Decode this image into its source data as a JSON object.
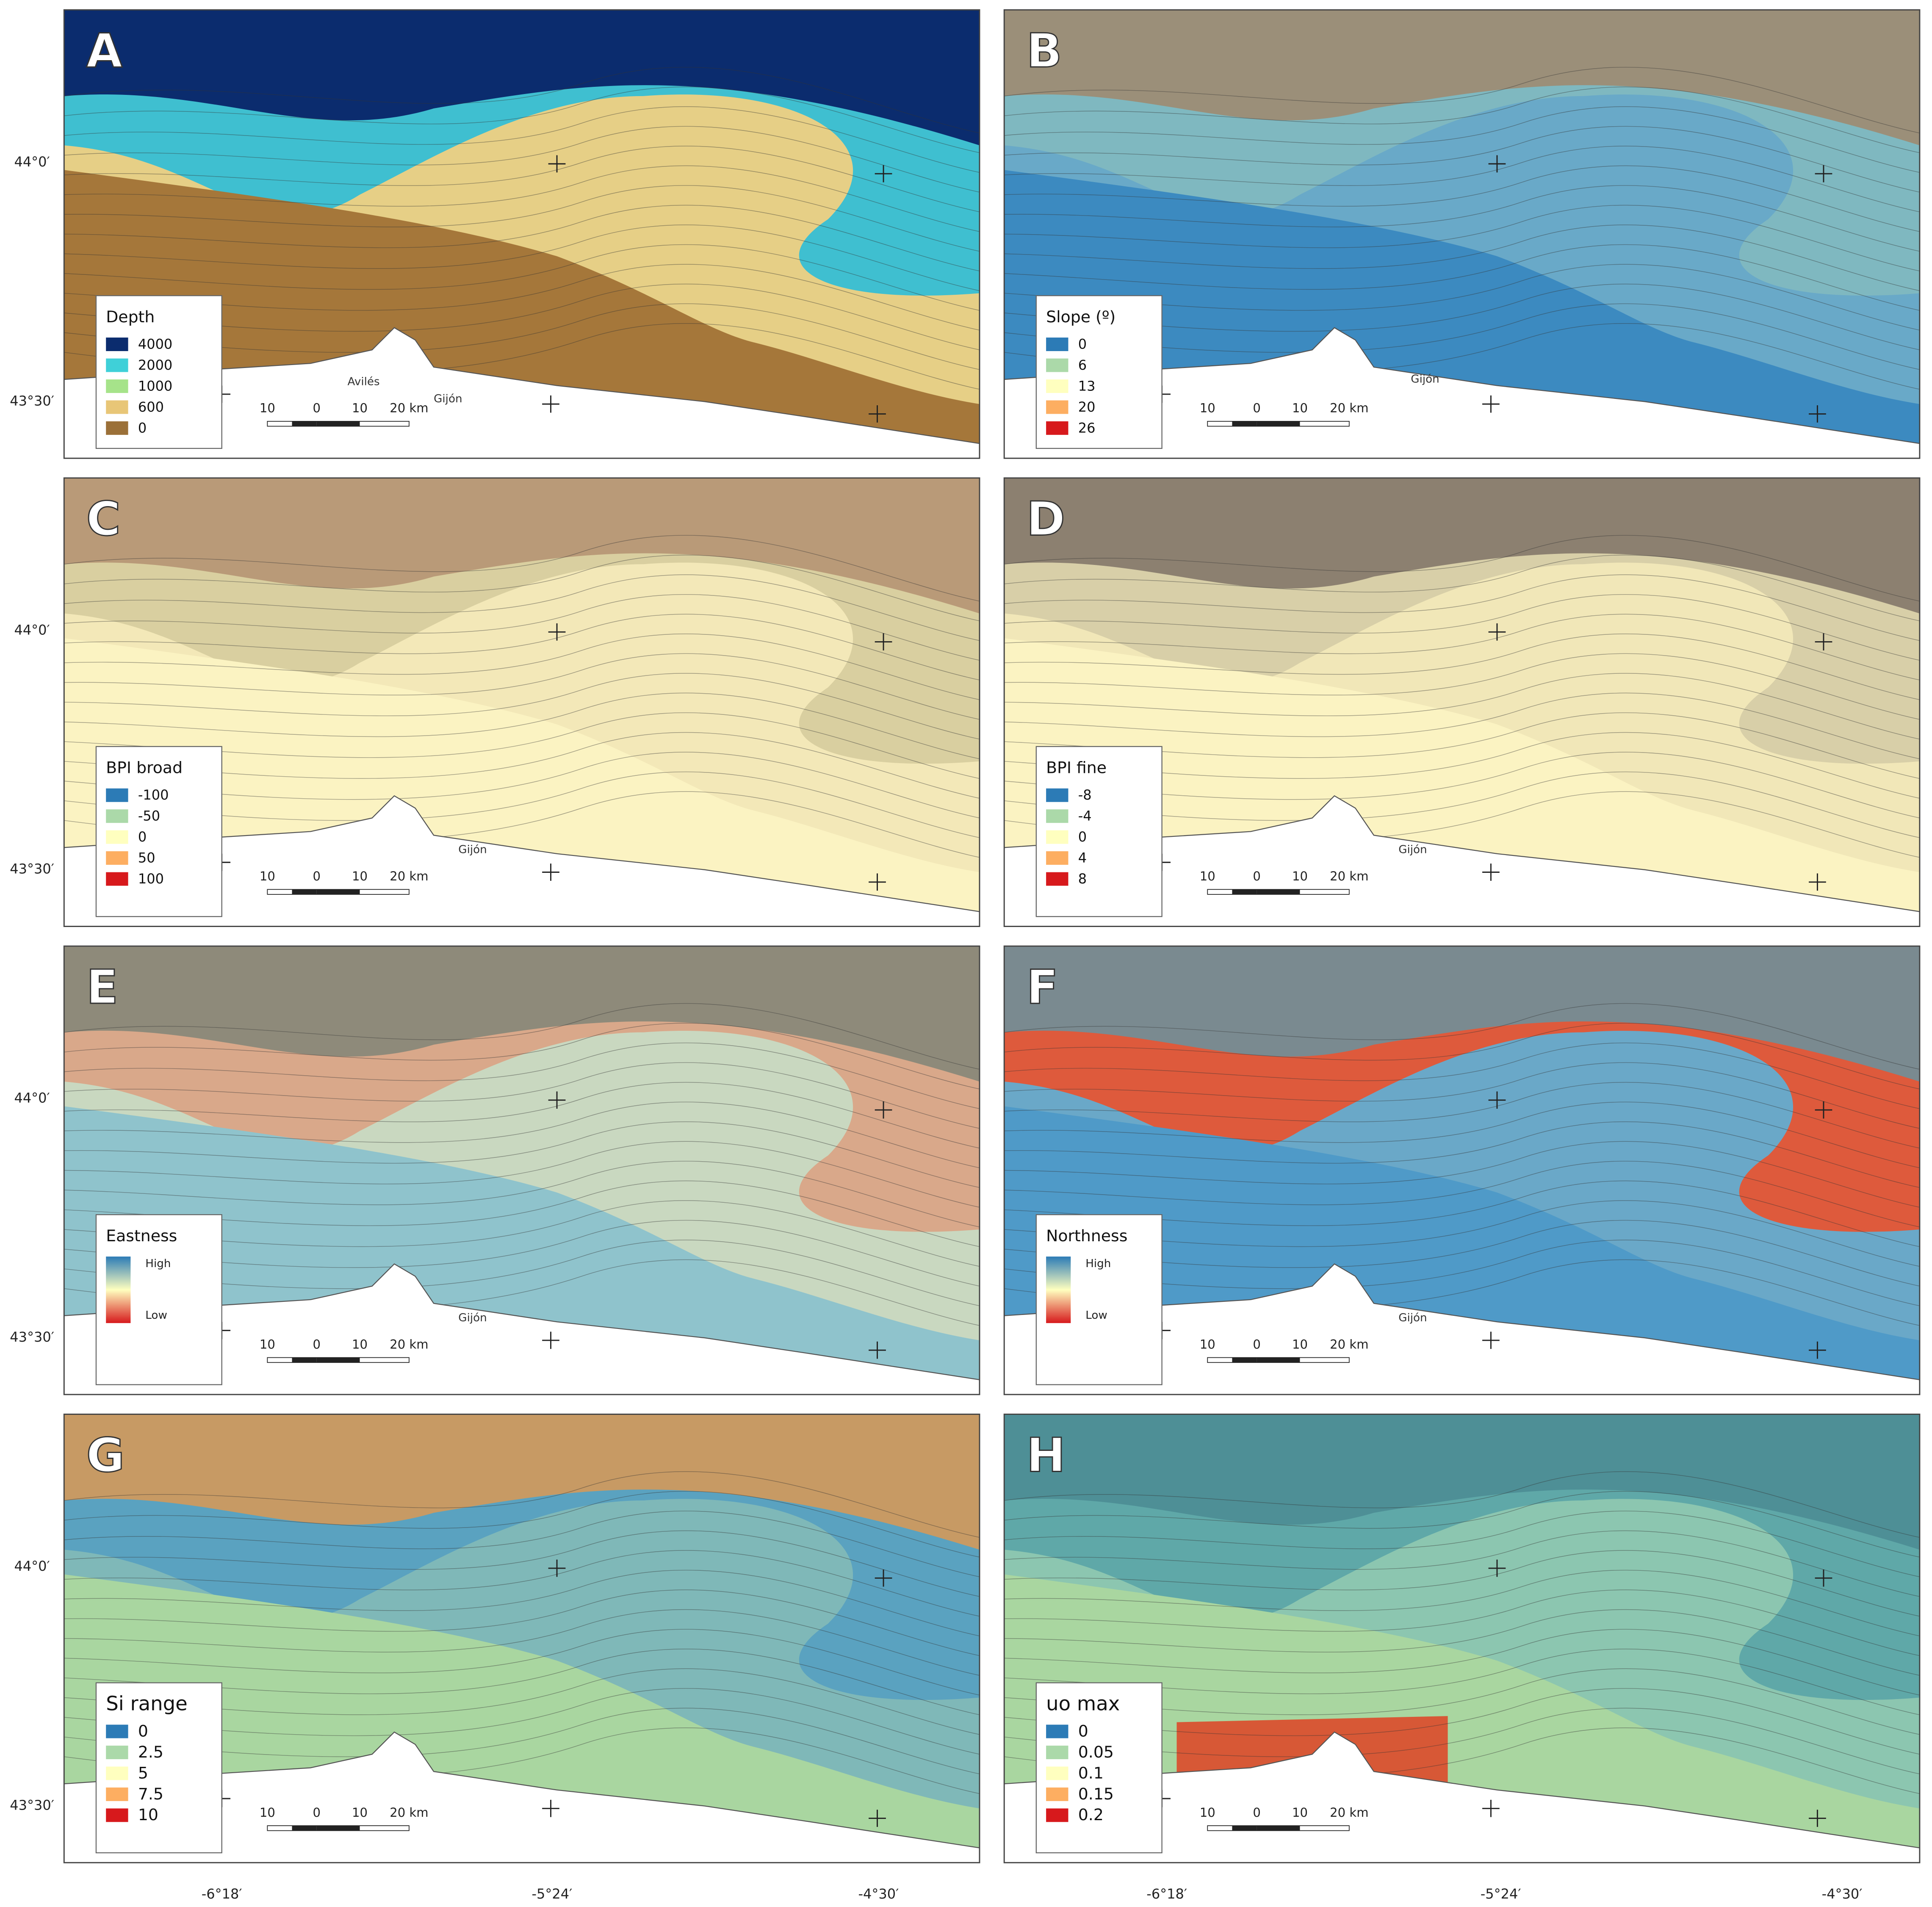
{
  "latitude_labels": [
    "44°0′",
    "43°30′"
  ],
  "longitude_labels": [
    "-6°18′",
    "-5°24′",
    "-4°30′"
  ],
  "scale_bar": [
    "10",
    "0",
    "10",
    "20 km"
  ],
  "panels": [
    {
      "letter": "A",
      "legend_title": "Depth",
      "legend_type": "classes",
      "places": [
        "Avilés",
        "Gijón"
      ],
      "legend": [
        {
          "label": "4000",
          "color": "#0b2c6e"
        },
        {
          "label": "2000",
          "color": "#3fd0d8"
        },
        {
          "label": "1000",
          "color": "#a6e38a"
        },
        {
          "label": "600",
          "color": "#e8c677"
        },
        {
          "label": "0",
          "color": "#9b7038"
        }
      ]
    },
    {
      "letter": "B",
      "legend_title": "Slope (º)",
      "legend_type": "classes",
      "places": [
        "Gijón"
      ],
      "legend": [
        {
          "label": "0",
          "color": "#2c7bb6"
        },
        {
          "label": "6",
          "color": "#abd9a9"
        },
        {
          "label": "13",
          "color": "#ffffbf"
        },
        {
          "label": "20",
          "color": "#fdae61"
        },
        {
          "label": "26",
          "color": "#d7191c"
        }
      ]
    },
    {
      "letter": "C",
      "legend_title": "BPI broad",
      "legend_type": "classes",
      "places": [
        "Gijón"
      ],
      "legend": [
        {
          "label": "-100",
          "color": "#2c7bb6"
        },
        {
          "label": "-50",
          "color": "#abd9a9"
        },
        {
          "label": "0",
          "color": "#ffffbf"
        },
        {
          "label": "50",
          "color": "#fdae61"
        },
        {
          "label": "100",
          "color": "#d7191c"
        }
      ]
    },
    {
      "letter": "D",
      "legend_title": "BPI fine",
      "legend_type": "classes",
      "places": [
        "Gijón"
      ],
      "legend": [
        {
          "label": "-8",
          "color": "#2c7bb6"
        },
        {
          "label": "-4",
          "color": "#abd9a9"
        },
        {
          "label": "0",
          "color": "#ffffbf"
        },
        {
          "label": "4",
          "color": "#fdae61"
        },
        {
          "label": "8",
          "color": "#d7191c"
        }
      ]
    },
    {
      "letter": "E",
      "legend_title": "Eastness",
      "legend_type": "gradient",
      "places": [
        "Gijón"
      ],
      "legend": [
        {
          "label": "High",
          "color": "#2c7bb6"
        },
        {
          "label": "Low",
          "color": "#d7191c"
        }
      ]
    },
    {
      "letter": "F",
      "legend_title": "Northness",
      "legend_type": "gradient",
      "places": [
        "Gijón"
      ],
      "legend": [
        {
          "label": "High",
          "color": "#2c7bb6"
        },
        {
          "label": "Low",
          "color": "#d7191c"
        }
      ]
    },
    {
      "letter": "G",
      "legend_title": "Si range",
      "legend_type": "classes",
      "places": [],
      "legend": [
        {
          "label": "0",
          "color": "#2c7bb6"
        },
        {
          "label": "2.5",
          "color": "#abd9a9"
        },
        {
          "label": "5",
          "color": "#ffffbf"
        },
        {
          "label": "7.5",
          "color": "#fdae61"
        },
        {
          "label": "10",
          "color": "#d7191c"
        }
      ]
    },
    {
      "letter": "H",
      "legend_title": "uo max",
      "legend_type": "classes",
      "places": [],
      "legend": [
        {
          "label": "0",
          "color": "#2c7bb6"
        },
        {
          "label": "0.05",
          "color": "#abd9a9"
        },
        {
          "label": "0.1",
          "color": "#ffffbf"
        },
        {
          "label": "0.15",
          "color": "#fdae61"
        },
        {
          "label": "0.2",
          "color": "#d7191c"
        }
      ]
    }
  ]
}
